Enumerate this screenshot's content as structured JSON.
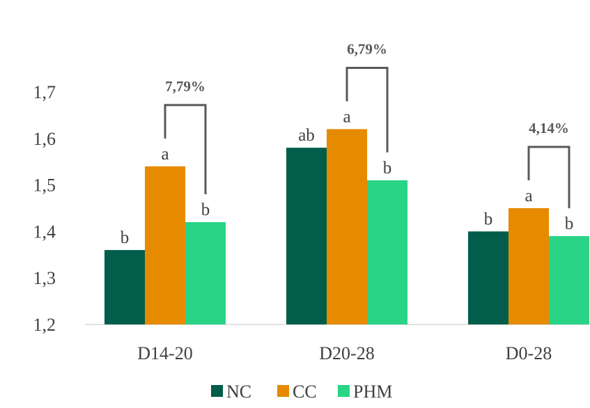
{
  "chart_data": {
    "type": "bar",
    "categories": [
      "D14-20",
      "D20-28",
      "D0-28"
    ],
    "series": [
      {
        "name": "NC",
        "values": [
          1.36,
          1.58,
          1.4
        ],
        "letters": [
          "b",
          "ab",
          "b"
        ]
      },
      {
        "name": "CC",
        "values": [
          1.54,
          1.62,
          1.45
        ],
        "letters": [
          "a",
          "a",
          "a"
        ]
      },
      {
        "name": "PHM",
        "values": [
          1.42,
          1.51,
          1.39
        ],
        "letters": [
          "b",
          "b",
          "b"
        ]
      }
    ],
    "yticks": [
      "1,2",
      "1,3",
      "1,4",
      "1,5",
      "1,6",
      "1,7"
    ],
    "ylim": [
      1.2,
      1.75
    ],
    "comparisons": [
      {
        "category": "D14-20",
        "label": "7,79%"
      },
      {
        "category": "D20-28",
        "label": "6,79%"
      },
      {
        "category": "D0-28",
        "label": "4,14%"
      }
    ],
    "colors": {
      "NC": "#025D4A",
      "CC": "#E68A00",
      "PHM": "#2AD486",
      "axis": "#D9D9D9",
      "bracket": "#595959"
    },
    "legend_position": "bottom",
    "grid": false
  }
}
